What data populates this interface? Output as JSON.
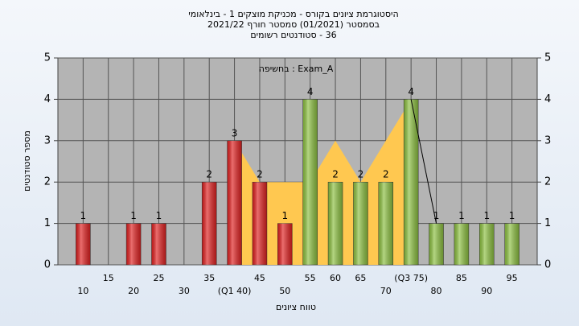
{
  "chart_data": {
    "type": "bar",
    "title": "היסטוגרמת ציונים בקורס - מכניקת מוצקים 1 - בינלאומי",
    "subtitle": "בסמסטר  (01/2021)  סמסטר חורף  2021/22",
    "subtitle2": "36 - סטודנטים רשומים",
    "annotation": "Exam_A : בחשיפה",
    "xlabel": "טווח ציונים",
    "ylabel": "מספר סטודנטים",
    "x": [
      10,
      15,
      20,
      25,
      30,
      35,
      40,
      45,
      50,
      55,
      60,
      65,
      70,
      75,
      80,
      85,
      90,
      95
    ],
    "values": [
      1,
      0,
      1,
      1,
      0,
      2,
      3,
      2,
      1,
      4,
      2,
      2,
      2,
      4,
      1,
      1,
      1,
      1
    ],
    "colors": [
      "#e02020",
      "#e02020",
      "#e02020",
      "#e02020",
      "#e02020",
      "#e02020",
      "#e02020",
      "#e02020",
      "#e02020",
      "#8cc040",
      "#8cc040",
      "#8cc040",
      "#8cc040",
      "#8cc040",
      "#8cc040",
      "#8cc040",
      "#8cc040",
      "#8cc040"
    ],
    "area": {
      "color": "#ffc850",
      "x": [
        40,
        45,
        50,
        55,
        60,
        65,
        70,
        75
      ],
      "values": [
        3,
        2,
        2,
        2,
        3,
        2,
        3,
        4
      ]
    },
    "line": {
      "color": "#000000",
      "x": [
        75,
        80
      ],
      "values": [
        4,
        1
      ]
    },
    "xlim": [
      5,
      100
    ],
    "ylim": [
      0,
      5
    ],
    "y2lim": [
      0,
      5
    ],
    "xticks": [
      10,
      15,
      20,
      25,
      30,
      35,
      {
        "value": 40,
        "label": "(Q1 40)"
      },
      45,
      50,
      55,
      60,
      65,
      70,
      {
        "value": 75,
        "label": "(Q3 75)"
      },
      80,
      85,
      90,
      95
    ],
    "yticks": [
      0,
      1,
      2,
      3,
      4,
      5
    ],
    "y2ticks": [
      0,
      1,
      2,
      3,
      4,
      5
    ],
    "grid": true
  }
}
